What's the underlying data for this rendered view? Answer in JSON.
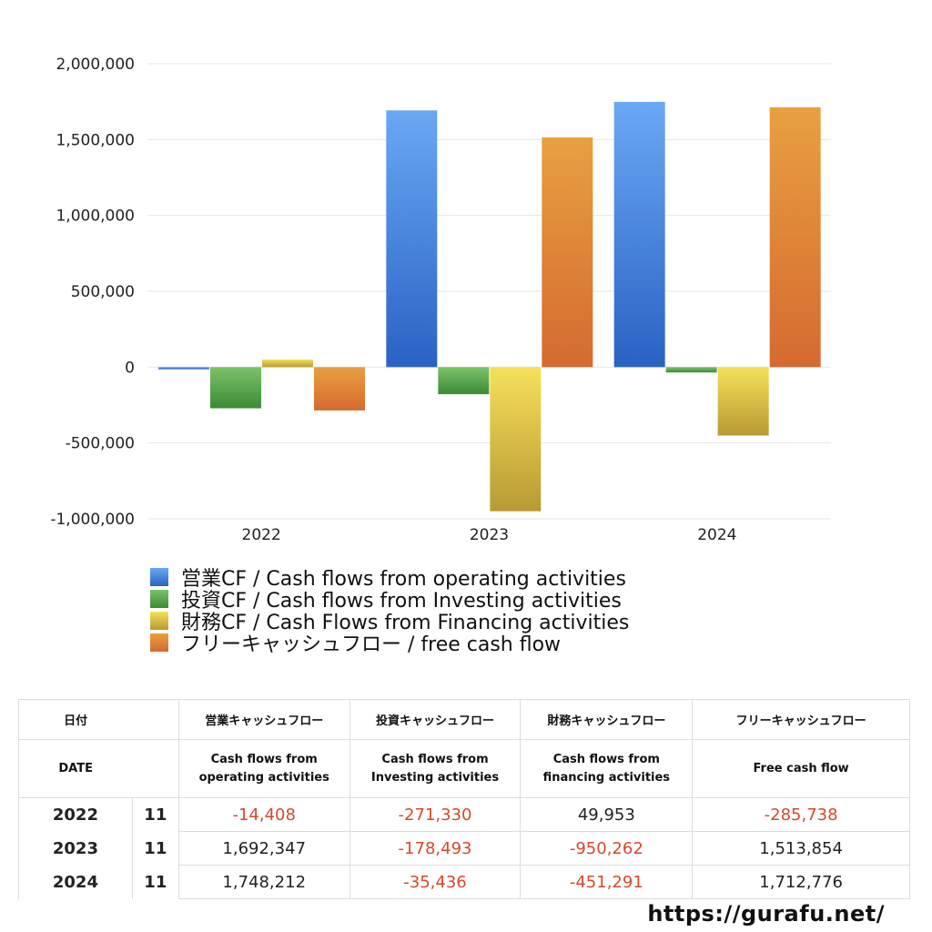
{
  "chart_data": {
    "type": "bar",
    "categories": [
      "2022",
      "2023",
      "2024"
    ],
    "series": [
      {
        "name": "営業CF / Cash flows from operating activities",
        "values": [
          -14408,
          1692347,
          1748212
        ],
        "color_top": "#6aa8f4",
        "color_bottom": "#2a62c4"
      },
      {
        "name": "投資CF / Cash flows from Investing activities",
        "values": [
          -271330,
          -178493,
          -35436
        ],
        "color_top": "#7cc36a",
        "color_bottom": "#3c8a36"
      },
      {
        "name": "財務CF / Cash Flows from Financing activities",
        "values": [
          49953,
          -950262,
          -451291
        ],
        "color_top": "#f5e05a",
        "color_bottom": "#b89a34"
      },
      {
        "name": "フリーキャッシュフロー / free cash flow",
        "values": [
          -285738,
          1513854,
          1712776
        ],
        "color_top": "#e8a040",
        "color_bottom": "#d56a30"
      }
    ],
    "ylim": [
      -1000000,
      2000000
    ],
    "yticks": [
      2000000,
      1500000,
      1000000,
      500000,
      0,
      -500000,
      -1000000
    ],
    "ytick_labels": [
      "2,000,000",
      "1,500,000",
      "1,000,000",
      "500,000",
      "0",
      "-500,000",
      "-1,000,000"
    ],
    "title": "",
    "xlabel": "",
    "ylabel": "",
    "grid": true,
    "legend_position": "bottom-left"
  },
  "table": {
    "header_jp": [
      "日付",
      "",
      "営業キャッシュフロー",
      "投資キャッシュフロー",
      "財務キャッシュフロー",
      "フリーキャッシュフロー"
    ],
    "header_en": [
      "DATE",
      "",
      "Cash flows from\noperating activities",
      "Cash flows from\nInvesting activities",
      "Cash flows from\nfinancing activities",
      "Free cash flow"
    ],
    "rows": [
      {
        "year": "2022",
        "month": "11",
        "values": [
          "-14,408",
          "-271,330",
          "49,953",
          "-285,738"
        ]
      },
      {
        "year": "2023",
        "month": "11",
        "values": [
          "1,692,347",
          "-178,493",
          "-950,262",
          "1,513,854"
        ]
      },
      {
        "year": "2024",
        "month": "11",
        "values": [
          "1,748,212",
          "-35,436",
          "-451,291",
          "1,712,776"
        ]
      }
    ]
  },
  "footer": {
    "url": "https://gurafu.net/"
  },
  "colors": {
    "negative": "#d24a2c",
    "grid": "#e6e6e6"
  }
}
